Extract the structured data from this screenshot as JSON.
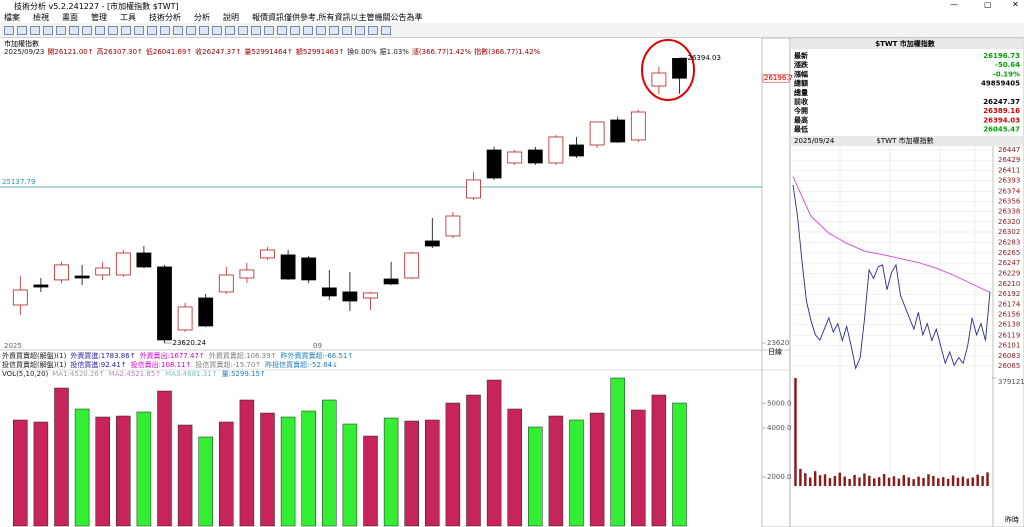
{
  "window": {
    "title": "技術分析 v5.2.241227 - [市加權指數 $TWT]",
    "menu": [
      "檔案",
      "檢視",
      "畫面",
      "管理",
      "工具",
      "技術分析",
      "分析",
      "說明"
    ],
    "notice": "報價資訊僅供參考,所有資訊以主管機關公告為準"
  },
  "chart_header": {
    "name": "市加權指數",
    "date": "2025/09/23",
    "info": [
      "開26121.00↑",
      "高26307.30↑",
      "低26041.69↑",
      "收26247.37↑",
      "量52991464↑",
      "額52991463↑",
      "換0.00%",
      "振1.03%",
      "漲(366.77)1.42%",
      "指數(366.77)1.42%"
    ],
    "info_colors": [
      "#a00000",
      "#a00000",
      "#a00000",
      "#a00000",
      "#a00000",
      "#a00000",
      "#202020",
      "#202020",
      "#a00000",
      "#a00000"
    ]
  },
  "indicators": [
    {
      "items": [
        "外資買賣超(解盤)(1)",
        "外資買進:1783.86↑",
        "外資賣出:1677.47↑",
        "外資買賣超:106.39↑",
        "昨外資買賣超:-66.51↑"
      ],
      "colors": [
        "#202020",
        "#2020a0",
        "#d000d0",
        "#808080",
        "#2080c0"
      ]
    },
    {
      "items": [
        "投信買賣超(解盤)(1)",
        "投信買進:92.41↑",
        "投信賣出:108.11↑",
        "投信買賣超:-15.70↑",
        "昨投信買賣超:-52.64↓"
      ],
      "colors": [
        "#202020",
        "#2020a0",
        "#d000d0",
        "#808080",
        "#2080c0"
      ]
    },
    {
      "items": [
        "VOL(5,10,20)",
        "MA1:4520.26↑",
        "MA2:4521.85↑",
        "MA3:4681.31↑",
        "量:5299.15↑"
      ],
      "colors": [
        "#202020",
        "#a0a0a0",
        "#c080c0",
        "#80c0c0",
        "#2080c0"
      ]
    }
  ],
  "quote": {
    "title": "$TWT 市加權指數",
    "rows": [
      {
        "label": "最新",
        "value": "26196.73",
        "color": "#00a000"
      },
      {
        "label": "漲跌",
        "value": "-50.64",
        "color": "#00a000"
      },
      {
        "label": "漲幅",
        "value": "-0.19%",
        "color": "#00a000"
      },
      {
        "label": "總額",
        "value": "49859405",
        "color": "#000000"
      },
      {
        "label": "總量",
        "value": null,
        "color": "#000000"
      },
      {
        "label": "前收",
        "value": "26247.37",
        "color": "#000000"
      },
      {
        "label": "今開",
        "value": "26389.16",
        "color": "#d00000"
      },
      {
        "label": "最高",
        "value": "26394.03",
        "color": "#d00000"
      },
      {
        "label": "最低",
        "value": "26045.47",
        "color": "#00a000"
      }
    ],
    "intraday_date": "2025/09/24",
    "intraday_title": "$TWT 市加權指數",
    "volume_note": "昨時",
    "period": "日線"
  },
  "chart_data": [
    {
      "type": "candlestick",
      "categories": [
        "2025",
        null,
        null,
        null,
        null,
        null,
        null,
        null,
        null,
        null,
        null,
        null,
        null,
        null,
        null,
        "09",
        null,
        null,
        null,
        null,
        null,
        null,
        null,
        null,
        null,
        null,
        null,
        null,
        null,
        null,
        null,
        null,
        null
      ],
      "open": [
        23990,
        24185,
        24234,
        24272,
        24282,
        24282,
        24496,
        24360,
        23747,
        24058,
        24117,
        24253,
        24448,
        24477,
        24448,
        24156,
        24117,
        24058,
        24243,
        24253,
        24613,
        24662,
        25031,
        25498,
        25372,
        25498,
        25372,
        25547,
        25547,
        25790,
        25596,
        26121.0,
        26389.16
      ],
      "high": [
        24272,
        24253,
        24409,
        24380,
        24409,
        24525,
        24564,
        24380,
        24010,
        24097,
        24360,
        24399,
        24555,
        24525,
        24467,
        24331,
        24311,
        24117,
        24409,
        24506,
        24837,
        24895,
        25284,
        25528,
        25498,
        25528,
        25644,
        25625,
        25771,
        25820,
        25888,
        26307.3,
        26394.03
      ],
      "low": [
        23893,
        24117,
        24204,
        24185,
        24234,
        24263,
        24350,
        23620.24,
        23728,
        23776,
        24097,
        24204,
        24428,
        24234,
        24204,
        24039,
        23932,
        23942,
        24185,
        24243,
        24545,
        24642,
        25012,
        25207,
        25353,
        25353,
        25353,
        25421,
        25518,
        25567,
        25576,
        26041.69,
        26045.47
      ],
      "close": [
        24136,
        24165,
        24380,
        24253,
        24350,
        24496,
        24360,
        23650,
        23971,
        23786,
        24282,
        24331,
        24525,
        24243,
        24234,
        24078,
        24029,
        24107,
        24195,
        24496,
        24564,
        24856,
        25207,
        25226,
        25479,
        25372,
        25625,
        25440,
        25771,
        25576,
        25868,
        26247.37,
        26196.73
      ],
      "up_color": "#b22222",
      "down_color": "#000000",
      "ylim": [
        23552,
        26588
      ],
      "yticks": [
        23620
      ],
      "reference_line": 25137.79,
      "reference_color": "#2a9a9a",
      "last_label": {
        "value": 26196.73,
        "label": "26196.7"
      }
    },
    {
      "type": "bar",
      "values": [
        4327,
        4245,
        5633,
        4776,
        4449,
        4490,
        4653,
        5510,
        4122,
        3633,
        4245,
        5143,
        4612,
        4449,
        4694,
        5143,
        4163,
        3673,
        4408,
        4286,
        4327,
        5020,
        5347,
        5959,
        4776,
        4041,
        4490,
        4327,
        4612,
        6041,
        4735,
        5347,
        5020
      ],
      "colors": [
        "#c8245c",
        "#c8245c",
        "#c8245c",
        "#33ee33",
        "#c8245c",
        "#c8245c",
        "#33ee33",
        "#c8245c",
        "#c8245c",
        "#33ee33",
        "#c8245c",
        "#c8245c",
        "#c8245c",
        "#33ee33",
        "#33ee33",
        "#33ee33",
        "#33ee33",
        "#c8245c",
        "#33ee33",
        "#c8245c",
        "#c8245c",
        "#c8245c",
        "#c8245c",
        "#c8245c",
        "#c8245c",
        "#33ee33",
        "#c8245c",
        "#33ee33",
        "#c8245c",
        "#33ee33",
        "#c8245c",
        "#c8245c",
        "#33ee33"
      ],
      "ylim": [
        0,
        6286
      ],
      "yticks": [
        {
          "value": 2000,
          "label": "2000.0"
        },
        {
          "value": 4000,
          "label": "4000.0"
        },
        {
          "value": 5000,
          "label": "5000.0"
        }
      ]
    },
    {
      "type": "line",
      "series": [
        {
          "color": "#2b2b8c",
          "x": [
            0,
            1,
            2,
            3,
            4,
            5,
            6,
            7,
            8,
            9,
            10,
            11,
            12,
            13,
            14,
            15,
            16,
            17,
            18,
            19,
            20,
            21,
            22,
            23,
            24,
            25,
            26,
            27,
            28,
            29,
            30,
            31,
            32,
            33,
            34,
            35,
            36,
            37,
            38,
            39,
            40,
            41,
            42,
            43,
            44
          ],
          "values": [
            26385,
            26330,
            26250,
            26180,
            26146,
            26120,
            26111,
            26130,
            26150,
            26125,
            26140,
            26110,
            26135,
            26100,
            26061,
            26080,
            26150,
            26235,
            26220,
            26240,
            26244,
            26200,
            26230,
            26244,
            26190,
            26170,
            26150,
            26130,
            26160,
            26120,
            26140,
            26110,
            26130,
            26100,
            26070,
            26090,
            26066,
            26080,
            26070,
            26100,
            26150,
            26120,
            26140,
            26110,
            26197
          ]
        },
        {
          "color": "#d048d0",
          "x": [
            0,
            4,
            8,
            12,
            16,
            20,
            24,
            28,
            32,
            36,
            40,
            44
          ],
          "values": [
            26400,
            26330,
            26300,
            26282,
            26268,
            26262,
            26255,
            26248,
            26238,
            26225,
            26210,
            26195
          ]
        }
      ],
      "xlim": [
        0,
        44
      ],
      "ylim": [
        26065,
        26447
      ],
      "yticks": [
        26447,
        26429,
        26411,
        26393,
        26374,
        26356,
        26338,
        26320,
        26302,
        26283,
        26265,
        26247,
        26229,
        26210,
        26192,
        26174,
        26156,
        26138,
        26119,
        26101,
        26083,
        26065
      ],
      "grid": true
    },
    {
      "type": "bar",
      "values": [
        379121,
        60000,
        45000,
        30000,
        52000,
        38000,
        41000,
        28000,
        35000,
        47000,
        33000,
        25000,
        39000,
        30000,
        44000,
        36000,
        27000,
        31000,
        42000,
        29000,
        34000,
        26000,
        38000,
        30000,
        24000,
        33000,
        28000,
        41000,
        35000,
        27000,
        31000,
        25000,
        37000,
        29000,
        33000,
        26000,
        30000,
        40000,
        35000,
        48000
      ],
      "color": "#8b1a1a",
      "ylim": [
        0,
        379121
      ],
      "yticks": [
        379121
      ]
    }
  ]
}
